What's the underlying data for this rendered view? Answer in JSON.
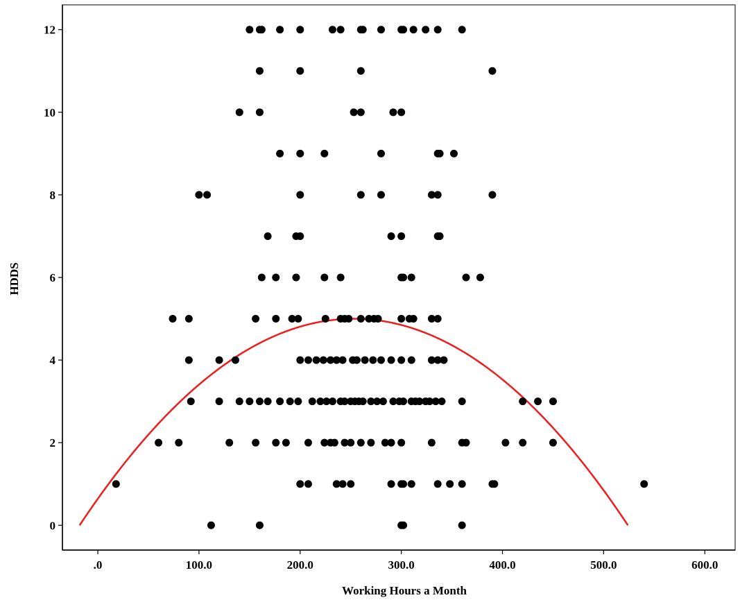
{
  "chart_data": {
    "type": "scatter",
    "title": "",
    "xlabel": "Working Hours a Month",
    "ylabel": "HDDS",
    "xlim": [
      -35,
      630
    ],
    "ylim": [
      -0.6,
      12.6
    ],
    "x_ticks": [
      0,
      100,
      200,
      300,
      400,
      500,
      600
    ],
    "x_tick_labels": [
      ".0",
      "100.0",
      "200.0",
      "300.0",
      "400.0",
      "500.0",
      "600.0"
    ],
    "y_ticks": [
      0,
      2,
      4,
      6,
      8,
      10,
      12
    ],
    "y_tick_labels": [
      "0",
      "2",
      "4",
      "6",
      "8",
      "10",
      "12"
    ],
    "grid": false,
    "colors": {
      "points": "#000000",
      "fit_line": "#ee1c1c",
      "axis": "#000000"
    },
    "series": [
      {
        "values": [
          [
            150,
            12
          ],
          [
            160,
            12
          ],
          [
            162,
            12
          ],
          [
            180,
            12
          ],
          [
            200,
            12
          ],
          [
            232,
            12
          ],
          [
            240,
            12
          ],
          [
            260,
            12
          ],
          [
            262,
            12
          ],
          [
            280,
            12
          ],
          [
            300,
            12
          ],
          [
            302,
            12
          ],
          [
            312,
            12
          ],
          [
            324,
            12
          ],
          [
            336,
            12
          ],
          [
            360,
            12
          ],
          [
            160,
            11
          ],
          [
            200,
            11
          ],
          [
            260,
            11
          ],
          [
            390,
            11
          ],
          [
            140,
            10
          ],
          [
            160,
            10
          ],
          [
            253,
            10
          ],
          [
            260,
            10
          ],
          [
            292,
            10
          ],
          [
            300,
            10
          ],
          [
            180,
            9
          ],
          [
            200,
            9
          ],
          [
            224,
            9
          ],
          [
            280,
            9
          ],
          [
            336,
            9
          ],
          [
            338,
            9
          ],
          [
            352,
            9
          ],
          [
            100,
            8
          ],
          [
            108,
            8
          ],
          [
            200,
            8
          ],
          [
            260,
            8
          ],
          [
            280,
            8
          ],
          [
            330,
            8
          ],
          [
            336,
            8
          ],
          [
            390,
            8
          ],
          [
            168,
            7
          ],
          [
            196,
            7
          ],
          [
            200,
            7
          ],
          [
            290,
            7
          ],
          [
            300,
            7
          ],
          [
            336,
            7
          ],
          [
            338,
            7
          ],
          [
            162,
            6
          ],
          [
            176,
            6
          ],
          [
            196,
            6
          ],
          [
            224,
            6
          ],
          [
            240,
            6
          ],
          [
            300,
            6
          ],
          [
            302,
            6
          ],
          [
            310,
            6
          ],
          [
            364,
            6
          ],
          [
            378,
            6
          ],
          [
            74,
            5
          ],
          [
            90,
            5
          ],
          [
            156,
            5
          ],
          [
            176,
            5
          ],
          [
            192,
            5
          ],
          [
            198,
            5
          ],
          [
            225,
            5
          ],
          [
            240,
            5
          ],
          [
            244,
            5
          ],
          [
            248,
            5
          ],
          [
            260,
            5
          ],
          [
            268,
            5
          ],
          [
            273,
            5
          ],
          [
            277,
            5
          ],
          [
            300,
            5
          ],
          [
            308,
            5
          ],
          [
            312,
            5
          ],
          [
            330,
            5
          ],
          [
            336,
            5
          ],
          [
            90,
            4
          ],
          [
            120,
            4
          ],
          [
            136,
            4
          ],
          [
            200,
            4
          ],
          [
            208,
            4
          ],
          [
            216,
            4
          ],
          [
            223,
            4
          ],
          [
            230,
            4
          ],
          [
            236,
            4
          ],
          [
            242,
            4
          ],
          [
            252,
            4
          ],
          [
            256,
            4
          ],
          [
            264,
            4
          ],
          [
            272,
            4
          ],
          [
            280,
            4
          ],
          [
            290,
            4
          ],
          [
            300,
            4
          ],
          [
            310,
            4
          ],
          [
            330,
            4
          ],
          [
            336,
            4
          ],
          [
            342,
            4
          ],
          [
            92,
            3
          ],
          [
            120,
            3
          ],
          [
            140,
            3
          ],
          [
            150,
            3
          ],
          [
            160,
            3
          ],
          [
            168,
            3
          ],
          [
            180,
            3
          ],
          [
            190,
            3
          ],
          [
            198,
            3
          ],
          [
            212,
            3
          ],
          [
            220,
            3
          ],
          [
            226,
            3
          ],
          [
            232,
            3
          ],
          [
            240,
            3
          ],
          [
            244,
            3
          ],
          [
            250,
            3
          ],
          [
            254,
            3
          ],
          [
            258,
            3
          ],
          [
            262,
            3
          ],
          [
            270,
            3
          ],
          [
            276,
            3
          ],
          [
            282,
            3
          ],
          [
            292,
            3
          ],
          [
            298,
            3
          ],
          [
            302,
            3
          ],
          [
            310,
            3
          ],
          [
            314,
            3
          ],
          [
            318,
            3
          ],
          [
            324,
            3
          ],
          [
            328,
            3
          ],
          [
            334,
            3
          ],
          [
            340,
            3
          ],
          [
            360,
            3
          ],
          [
            420,
            3
          ],
          [
            435,
            3
          ],
          [
            450,
            3
          ],
          [
            60,
            2
          ],
          [
            80,
            2
          ],
          [
            130,
            2
          ],
          [
            156,
            2
          ],
          [
            176,
            2
          ],
          [
            186,
            2
          ],
          [
            208,
            2
          ],
          [
            224,
            2
          ],
          [
            230,
            2
          ],
          [
            234,
            2
          ],
          [
            244,
            2
          ],
          [
            250,
            2
          ],
          [
            260,
            2
          ],
          [
            270,
            2
          ],
          [
            284,
            2
          ],
          [
            290,
            2
          ],
          [
            300,
            2
          ],
          [
            330,
            2
          ],
          [
            360,
            2
          ],
          [
            364,
            2
          ],
          [
            403,
            2
          ],
          [
            420,
            2
          ],
          [
            450,
            2
          ],
          [
            18,
            1
          ],
          [
            200,
            1
          ],
          [
            208,
            1
          ],
          [
            236,
            1
          ],
          [
            242,
            1
          ],
          [
            250,
            1
          ],
          [
            290,
            1
          ],
          [
            300,
            1
          ],
          [
            302,
            1
          ],
          [
            310,
            1
          ],
          [
            336,
            1
          ],
          [
            348,
            1
          ],
          [
            360,
            1
          ],
          [
            390,
            1
          ],
          [
            392,
            1
          ],
          [
            540,
            1
          ],
          [
            112,
            0
          ],
          [
            160,
            0
          ],
          [
            300,
            0
          ],
          [
            302,
            0
          ],
          [
            360,
            0
          ]
        ]
      }
    ],
    "fit_line": {
      "type": "quadratic",
      "peak_x": 253,
      "peak_y": 5.0,
      "root_low": -18,
      "root_high": 524,
      "x_range": [
        -18,
        524
      ]
    }
  }
}
